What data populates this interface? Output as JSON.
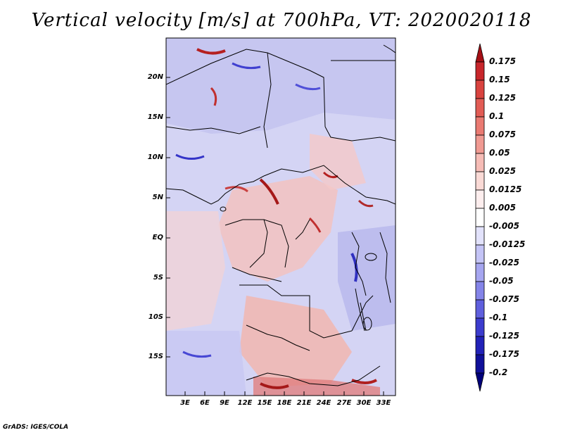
{
  "title": "Vertical velocity [m/s] at 700hPa, VT: 2020020118",
  "credit": "GrADS: IGES/COLA",
  "map": {
    "lat_labels": [
      "20N",
      "15N",
      "10N",
      "5N",
      "EQ",
      "5S",
      "10S",
      "15S"
    ],
    "lon_labels": [
      "3E",
      "6E",
      "9E",
      "12E",
      "15E",
      "18E",
      "21E",
      "24E",
      "27E",
      "30E",
      "33E"
    ]
  },
  "colorbar": {
    "labels": [
      "0.175",
      "0.15",
      "0.125",
      "0.1",
      "0.075",
      "0.05",
      "0.025",
      "0.0125",
      "0.005",
      "-0.005",
      "-0.0125",
      "-0.025",
      "-0.05",
      "-0.075",
      "-0.1",
      "-0.125",
      "-0.175",
      "-0.2"
    ],
    "colors": [
      "#a50f15",
      "#c8262b",
      "#d9433f",
      "#e25c55",
      "#ea7a72",
      "#f09a92",
      "#f6bcb6",
      "#fadad6",
      "#fdeeee",
      "#ffffff",
      "#e2e2fb",
      "#c4c4f6",
      "#a6a6f0",
      "#8484e8",
      "#5f5fdd",
      "#3c3cce",
      "#2222b8",
      "#10109a",
      "#00007a"
    ]
  }
}
